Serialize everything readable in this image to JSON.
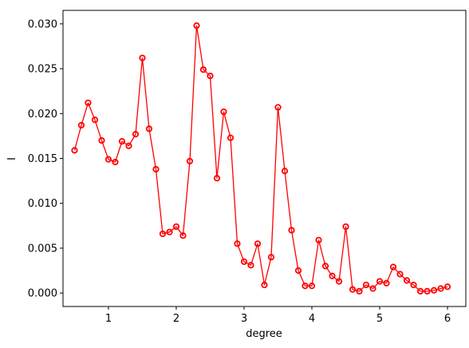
{
  "chart_data": {
    "type": "line",
    "title": "",
    "xlabel": "degree",
    "ylabel": "I",
    "xlim": [
      0.33,
      6.27
    ],
    "ylim": [
      -0.0015,
      0.0315
    ],
    "xticks": [
      1,
      2,
      3,
      4,
      5,
      6
    ],
    "xtick_labels": [
      "1",
      "2",
      "3",
      "4",
      "5",
      "6"
    ],
    "yticks": [
      0.0,
      0.005,
      0.01,
      0.015,
      0.02,
      0.025,
      0.03
    ],
    "ytick_labels": [
      "0.000",
      "0.005",
      "0.010",
      "0.015",
      "0.020",
      "0.025",
      "0.030"
    ],
    "grid": false,
    "legend": false,
    "colors": {
      "line": "#ff0000",
      "marker": "#ff0000",
      "axes": "#000000",
      "background": "#ffffff"
    },
    "marker": "open-circle",
    "series": [
      {
        "x": [
          0.5,
          0.6,
          0.7,
          0.8,
          0.9,
          1.0,
          1.1,
          1.2,
          1.3,
          1.4,
          1.5,
          1.6,
          1.7,
          1.8,
          1.9,
          2.0,
          2.1,
          2.2,
          2.3,
          2.4,
          2.5,
          2.6,
          2.7,
          2.8,
          2.9,
          3.0,
          3.1,
          3.2,
          3.3,
          3.4,
          3.5,
          3.6,
          3.7,
          3.8,
          3.9,
          4.0,
          4.1,
          4.2,
          4.3,
          4.4,
          4.5,
          4.6,
          4.7,
          4.8,
          4.9,
          5.0,
          5.1,
          5.2,
          5.3,
          5.4,
          5.5,
          5.6,
          5.7,
          5.8,
          5.9,
          6.0
        ],
        "values": [
          0.0159,
          0.0187,
          0.0212,
          0.0193,
          0.017,
          0.0149,
          0.0146,
          0.0169,
          0.0164,
          0.0177,
          0.0262,
          0.0183,
          0.0138,
          0.0066,
          0.0068,
          0.0074,
          0.0064,
          0.0147,
          0.0298,
          0.0249,
          0.0242,
          0.0128,
          0.0202,
          0.0173,
          0.0055,
          0.0035,
          0.0031,
          0.0055,
          0.0009,
          0.004,
          0.0207,
          0.0136,
          0.007,
          0.0025,
          0.0008,
          0.0008,
          0.0059,
          0.003,
          0.0019,
          0.0013,
          0.0074,
          0.0004,
          0.0002,
          0.0009,
          0.0005,
          0.0013,
          0.0011,
          0.0029,
          0.0021,
          0.0014,
          0.0009,
          0.0002,
          0.0002,
          0.0003,
          0.0005,
          0.0007
        ]
      }
    ]
  }
}
